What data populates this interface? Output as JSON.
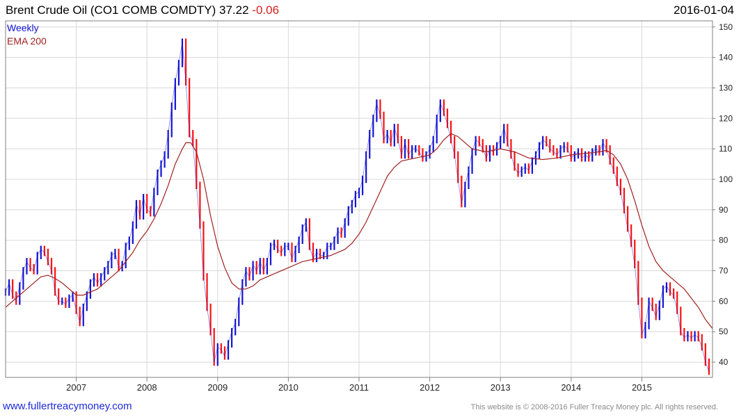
{
  "header": {
    "title": "Brent Crude Oil  (CO1 COMB COMDTY)",
    "last": "37.22",
    "change": "-0.06",
    "date": "2016-01-04"
  },
  "legend": {
    "weekly": "Weekly",
    "ema": "EMA 200"
  },
  "footer": {
    "site": "www.fullertreacymoney.com",
    "copyright": "This website is © 2008-2016 Fuller Treacy Money plc. All rights reserved."
  },
  "colors": {
    "up": "#1414d2",
    "down": "#ff1010",
    "ema": "#a02020",
    "grid": "#d8d8d8",
    "frame": "#808080"
  },
  "chart_data": {
    "type": "line",
    "series": [
      {
        "name": "Weekly",
        "style": "bars",
        "values": [
          [
            2006.0,
            63
          ],
          [
            2006.05,
            66
          ],
          [
            2006.1,
            62
          ],
          [
            2006.15,
            60
          ],
          [
            2006.2,
            65
          ],
          [
            2006.25,
            70
          ],
          [
            2006.3,
            73
          ],
          [
            2006.35,
            71
          ],
          [
            2006.4,
            70
          ],
          [
            2006.45,
            75
          ],
          [
            2006.5,
            77
          ],
          [
            2006.55,
            76
          ],
          [
            2006.6,
            73
          ],
          [
            2006.65,
            70
          ],
          [
            2006.7,
            63
          ],
          [
            2006.75,
            60
          ],
          [
            2006.8,
            60
          ],
          [
            2006.85,
            59
          ],
          [
            2006.9,
            61
          ],
          [
            2006.95,
            62
          ],
          [
            2007.0,
            57
          ],
          [
            2007.05,
            53
          ],
          [
            2007.1,
            58
          ],
          [
            2007.15,
            62
          ],
          [
            2007.2,
            66
          ],
          [
            2007.25,
            68
          ],
          [
            2007.3,
            66
          ],
          [
            2007.35,
            68
          ],
          [
            2007.4,
            70
          ],
          [
            2007.45,
            72
          ],
          [
            2007.5,
            75
          ],
          [
            2007.55,
            76
          ],
          [
            2007.6,
            71
          ],
          [
            2007.65,
            72
          ],
          [
            2007.7,
            78
          ],
          [
            2007.75,
            80
          ],
          [
            2007.8,
            85
          ],
          [
            2007.85,
            92
          ],
          [
            2007.9,
            88
          ],
          [
            2007.95,
            94
          ],
          [
            2008.0,
            90
          ],
          [
            2008.05,
            89
          ],
          [
            2008.1,
            96
          ],
          [
            2008.15,
            102
          ],
          [
            2008.2,
            105
          ],
          [
            2008.25,
            108
          ],
          [
            2008.3,
            115
          ],
          [
            2008.35,
            124
          ],
          [
            2008.4,
            132
          ],
          [
            2008.45,
            138
          ],
          [
            2008.5,
            145
          ],
          [
            2008.55,
            132
          ],
          [
            2008.6,
            115
          ],
          [
            2008.65,
            112
          ],
          [
            2008.7,
            98
          ],
          [
            2008.75,
            85
          ],
          [
            2008.8,
            68
          ],
          [
            2008.85,
            58
          ],
          [
            2008.9,
            50
          ],
          [
            2008.95,
            40
          ],
          [
            2009.0,
            45
          ],
          [
            2009.05,
            44
          ],
          [
            2009.1,
            42
          ],
          [
            2009.15,
            46
          ],
          [
            2009.2,
            50
          ],
          [
            2009.25,
            53
          ],
          [
            2009.3,
            60
          ],
          [
            2009.35,
            66
          ],
          [
            2009.4,
            70
          ],
          [
            2009.45,
            68
          ],
          [
            2009.5,
            72
          ],
          [
            2009.55,
            70
          ],
          [
            2009.6,
            73
          ],
          [
            2009.65,
            70
          ],
          [
            2009.7,
            73
          ],
          [
            2009.75,
            78
          ],
          [
            2009.8,
            79
          ],
          [
            2009.85,
            77
          ],
          [
            2009.9,
            76
          ],
          [
            2009.95,
            78
          ],
          [
            2010.0,
            78
          ],
          [
            2010.05,
            74
          ],
          [
            2010.1,
            77
          ],
          [
            2010.15,
            80
          ],
          [
            2010.2,
            84
          ],
          [
            2010.25,
            86
          ],
          [
            2010.3,
            78
          ],
          [
            2010.35,
            74
          ],
          [
            2010.4,
            76
          ],
          [
            2010.45,
            75
          ],
          [
            2010.5,
            75
          ],
          [
            2010.55,
            78
          ],
          [
            2010.6,
            78
          ],
          [
            2010.65,
            80
          ],
          [
            2010.7,
            83
          ],
          [
            2010.75,
            82
          ],
          [
            2010.8,
            86
          ],
          [
            2010.85,
            90
          ],
          [
            2010.9,
            92
          ],
          [
            2010.95,
            95
          ],
          [
            2011.0,
            96
          ],
          [
            2011.05,
            100
          ],
          [
            2011.1,
            108
          ],
          [
            2011.15,
            115
          ],
          [
            2011.2,
            120
          ],
          [
            2011.25,
            125
          ],
          [
            2011.3,
            121
          ],
          [
            2011.35,
            113
          ],
          [
            2011.4,
            115
          ],
          [
            2011.45,
            112
          ],
          [
            2011.5,
            117
          ],
          [
            2011.55,
            113
          ],
          [
            2011.6,
            108
          ],
          [
            2011.65,
            112
          ],
          [
            2011.7,
            108
          ],
          [
            2011.75,
            110
          ],
          [
            2011.8,
            110
          ],
          [
            2011.85,
            109
          ],
          [
            2011.9,
            107
          ],
          [
            2011.95,
            108
          ],
          [
            2012.0,
            110
          ],
          [
            2012.05,
            113
          ],
          [
            2012.1,
            120
          ],
          [
            2012.15,
            125
          ],
          [
            2012.2,
            122
          ],
          [
            2012.25,
            118
          ],
          [
            2012.3,
            113
          ],
          [
            2012.35,
            108
          ],
          [
            2012.4,
            100
          ],
          [
            2012.45,
            92
          ],
          [
            2012.5,
            98
          ],
          [
            2012.55,
            103
          ],
          [
            2012.6,
            109
          ],
          [
            2012.65,
            113
          ],
          [
            2012.7,
            112
          ],
          [
            2012.75,
            110
          ],
          [
            2012.8,
            107
          ],
          [
            2012.85,
            110
          ],
          [
            2012.9,
            109
          ],
          [
            2012.95,
            111
          ],
          [
            2013.0,
            113
          ],
          [
            2013.05,
            117
          ],
          [
            2013.1,
            112
          ],
          [
            2013.15,
            108
          ],
          [
            2013.2,
            104
          ],
          [
            2013.25,
            102
          ],
          [
            2013.3,
            103
          ],
          [
            2013.35,
            104
          ],
          [
            2013.4,
            103
          ],
          [
            2013.45,
            106
          ],
          [
            2013.5,
            108
          ],
          [
            2013.55,
            111
          ],
          [
            2013.6,
            113
          ],
          [
            2013.65,
            112
          ],
          [
            2013.7,
            110
          ],
          [
            2013.75,
            109
          ],
          [
            2013.8,
            108
          ],
          [
            2013.85,
            110
          ],
          [
            2013.9,
            111
          ],
          [
            2013.95,
            110
          ],
          [
            2014.0,
            107
          ],
          [
            2014.05,
            108
          ],
          [
            2014.1,
            109
          ],
          [
            2014.15,
            107
          ],
          [
            2014.2,
            108
          ],
          [
            2014.25,
            107
          ],
          [
            2014.3,
            109
          ],
          [
            2014.35,
            110
          ],
          [
            2014.4,
            109
          ],
          [
            2014.45,
            112
          ],
          [
            2014.5,
            110
          ],
          [
            2014.55,
            106
          ],
          [
            2014.6,
            103
          ],
          [
            2014.65,
            99
          ],
          [
            2014.7,
            96
          ],
          [
            2014.75,
            90
          ],
          [
            2014.8,
            84
          ],
          [
            2014.85,
            79
          ],
          [
            2014.9,
            72
          ],
          [
            2014.95,
            60
          ],
          [
            2015.0,
            49
          ],
          [
            2015.05,
            52
          ],
          [
            2015.1,
            60
          ],
          [
            2015.15,
            58
          ],
          [
            2015.2,
            55
          ],
          [
            2015.25,
            59
          ],
          [
            2015.3,
            64
          ],
          [
            2015.35,
            65
          ],
          [
            2015.4,
            63
          ],
          [
            2015.45,
            62
          ],
          [
            2015.5,
            57
          ],
          [
            2015.55,
            50
          ],
          [
            2015.6,
            48
          ],
          [
            2015.65,
            49
          ],
          [
            2015.7,
            48
          ],
          [
            2015.75,
            49
          ],
          [
            2015.8,
            48
          ],
          [
            2015.85,
            45
          ],
          [
            2015.9,
            40
          ],
          [
            2015.95,
            37
          ]
        ]
      },
      {
        "name": "EMA 200",
        "style": "line",
        "values": [
          [
            2006.0,
            58
          ],
          [
            2006.2,
            62
          ],
          [
            2006.4,
            66
          ],
          [
            2006.5,
            68
          ],
          [
            2006.6,
            68.5
          ],
          [
            2006.7,
            67.5
          ],
          [
            2006.8,
            66
          ],
          [
            2006.9,
            64
          ],
          [
            2007.0,
            62
          ],
          [
            2007.1,
            62
          ],
          [
            2007.2,
            63
          ],
          [
            2007.3,
            64
          ],
          [
            2007.4,
            66
          ],
          [
            2007.5,
            68
          ],
          [
            2007.6,
            70
          ],
          [
            2007.7,
            73
          ],
          [
            2007.8,
            76
          ],
          [
            2007.9,
            80
          ],
          [
            2008.0,
            83
          ],
          [
            2008.1,
            87
          ],
          [
            2008.2,
            92
          ],
          [
            2008.3,
            98
          ],
          [
            2008.4,
            105
          ],
          [
            2008.5,
            110
          ],
          [
            2008.55,
            112
          ],
          [
            2008.62,
            112
          ],
          [
            2008.7,
            109
          ],
          [
            2008.8,
            100
          ],
          [
            2008.9,
            88
          ],
          [
            2009.0,
            78
          ],
          [
            2009.1,
            71
          ],
          [
            2009.2,
            66
          ],
          [
            2009.3,
            64
          ],
          [
            2009.4,
            64
          ],
          [
            2009.5,
            65
          ],
          [
            2009.6,
            67
          ],
          [
            2009.8,
            69
          ],
          [
            2010.0,
            71
          ],
          [
            2010.2,
            73
          ],
          [
            2010.4,
            74
          ],
          [
            2010.6,
            75
          ],
          [
            2010.8,
            77
          ],
          [
            2010.9,
            79
          ],
          [
            2011.0,
            82
          ],
          [
            2011.1,
            86
          ],
          [
            2011.2,
            91
          ],
          [
            2011.3,
            96
          ],
          [
            2011.4,
            101
          ],
          [
            2011.5,
            104
          ],
          [
            2011.6,
            106
          ],
          [
            2011.8,
            107
          ],
          [
            2012.0,
            108
          ],
          [
            2012.1,
            110
          ],
          [
            2012.2,
            113
          ],
          [
            2012.3,
            115
          ],
          [
            2012.4,
            114
          ],
          [
            2012.5,
            112
          ],
          [
            2012.6,
            110
          ],
          [
            2012.8,
            109
          ],
          [
            2013.0,
            110
          ],
          [
            2013.2,
            109
          ],
          [
            2013.4,
            107
          ],
          [
            2013.6,
            106.5
          ],
          [
            2013.8,
            107
          ],
          [
            2014.0,
            108
          ],
          [
            2014.2,
            108.5
          ],
          [
            2014.4,
            109
          ],
          [
            2014.5,
            109.5
          ],
          [
            2014.6,
            108
          ],
          [
            2014.7,
            105
          ],
          [
            2014.8,
            100
          ],
          [
            2014.9,
            93
          ],
          [
            2015.0,
            85
          ],
          [
            2015.1,
            78
          ],
          [
            2015.2,
            73
          ],
          [
            2015.3,
            70
          ],
          [
            2015.4,
            68
          ],
          [
            2015.5,
            66
          ],
          [
            2015.6,
            64
          ],
          [
            2015.7,
            61
          ],
          [
            2015.8,
            58
          ],
          [
            2015.9,
            54
          ],
          [
            2016.0,
            51
          ]
        ]
      }
    ],
    "x_ticks": [
      "2007",
      "2008",
      "2009",
      "2010",
      "2011",
      "2012",
      "2013",
      "2014",
      "2015"
    ],
    "x_tick_values": [
      2007,
      2008,
      2009,
      2010,
      2011,
      2012,
      2013,
      2014,
      2015
    ],
    "y_ticks": [
      40,
      50,
      60,
      70,
      80,
      90,
      100,
      110,
      120,
      130,
      140,
      150
    ],
    "xlim": [
      2006.0,
      2016.0
    ],
    "ylim": [
      35,
      152
    ],
    "grid": true,
    "legend_position": "top-left",
    "y_axis_side": "right"
  }
}
